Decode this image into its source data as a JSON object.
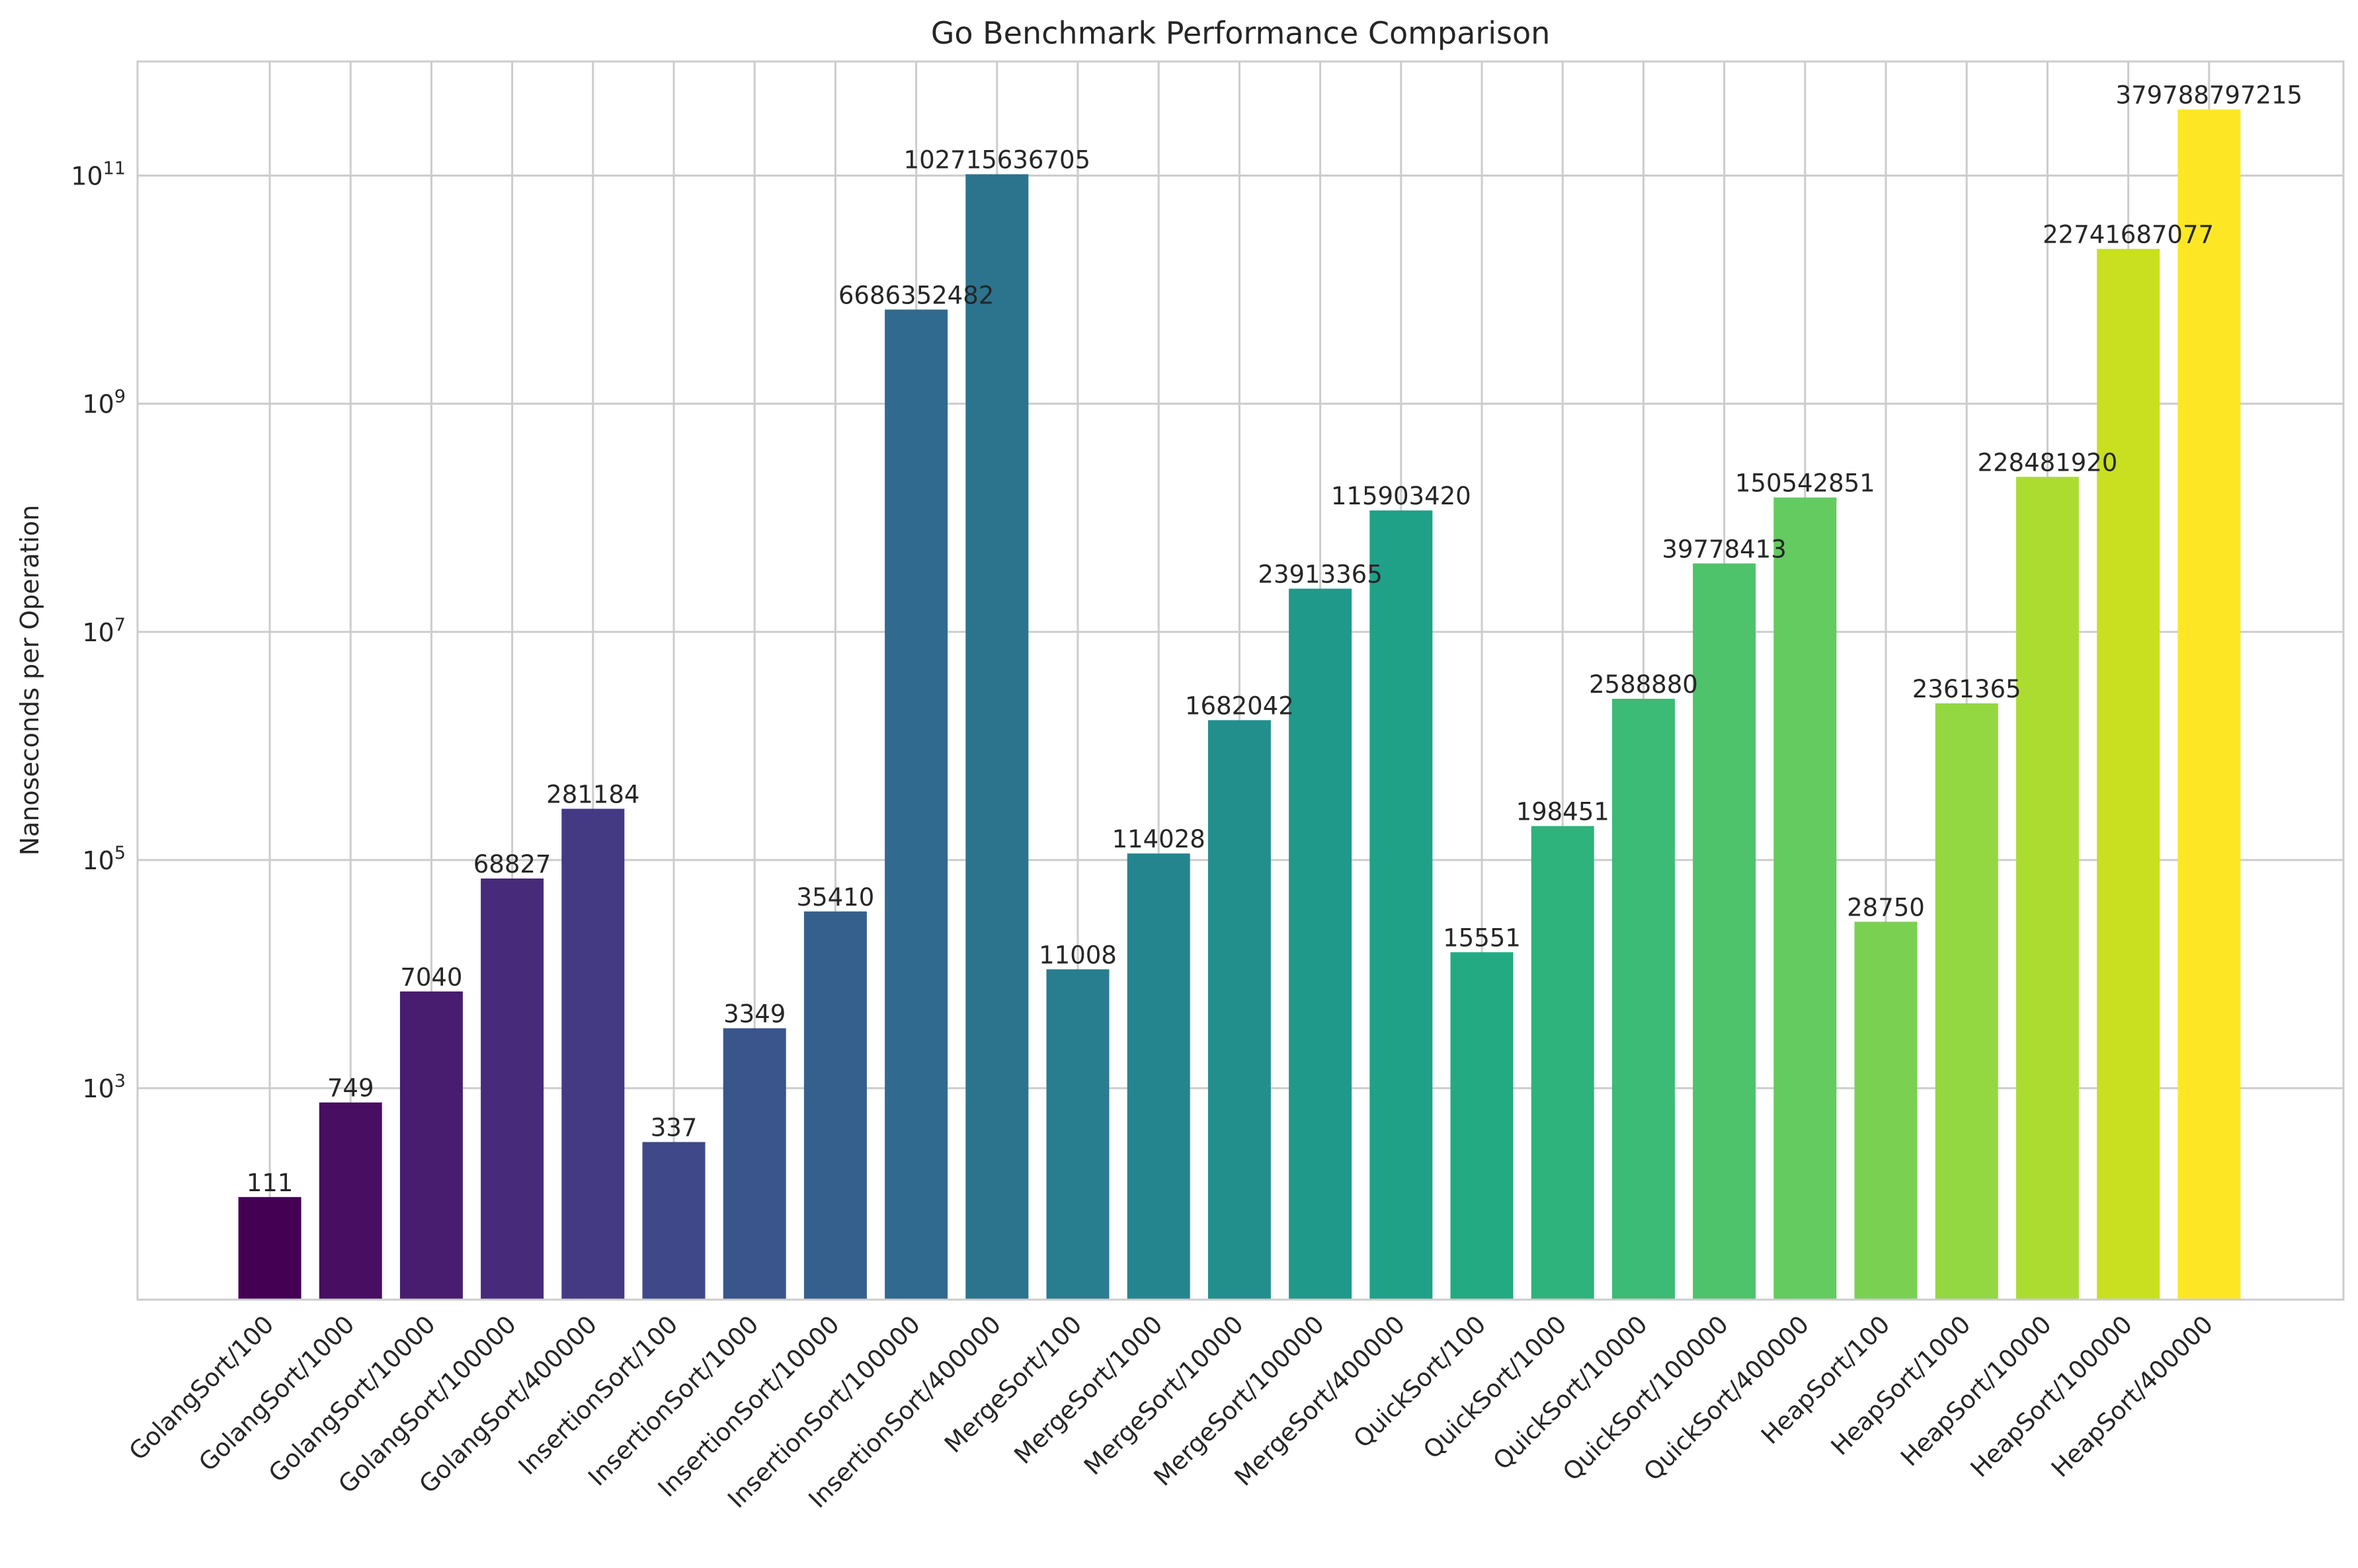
{
  "chart_data": {
    "type": "bar",
    "title": "Go Benchmark Performance Comparison",
    "xlabel": "",
    "ylabel": "Nanoseconds per Operation",
    "yscale": "log",
    "ylim": [
      14,
      1000000000000
    ],
    "yticks": [
      {
        "value": 1000,
        "base": "10",
        "exp": "3"
      },
      {
        "value": 100000,
        "base": "10",
        "exp": "5"
      },
      {
        "value": 10000000,
        "base": "10",
        "exp": "7"
      },
      {
        "value": 1000000000,
        "base": "10",
        "exp": "9"
      },
      {
        "value": 100000000000,
        "base": "10",
        "exp": "11"
      }
    ],
    "grid": true,
    "legend": "none",
    "colormap": "viridis",
    "categories": [
      "GolangSort/100",
      "GolangSort/1000",
      "GolangSort/10000",
      "GolangSort/100000",
      "GolangSort/400000",
      "InsertionSort/100",
      "InsertionSort/1000",
      "InsertionSort/10000",
      "InsertionSort/100000",
      "InsertionSort/400000",
      "MergeSort/100",
      "MergeSort/1000",
      "MergeSort/10000",
      "MergeSort/100000",
      "MergeSort/400000",
      "QuickSort/100",
      "QuickSort/1000",
      "QuickSort/10000",
      "QuickSort/100000",
      "QuickSort/400000",
      "HeapSort/100",
      "HeapSort/1000",
      "HeapSort/10000",
      "HeapSort/100000",
      "HeapSort/400000"
    ],
    "values": [
      111,
      749,
      7040,
      68827,
      281184,
      337,
      3349,
      35410,
      6686352482,
      102715636705,
      11008,
      114028,
      1682042,
      23913365,
      115903420,
      15551,
      198451,
      2588880,
      39778413,
      150542851,
      28750,
      2361365,
      228481920,
      22741687077,
      379788797215
    ],
    "value_labels": [
      "111",
      "749",
      "7040",
      "68827",
      "281184",
      "337",
      "3349",
      "35410",
      "6686352482",
      "102715636705",
      "11008",
      "114028",
      "1682042",
      "23913365",
      "115903420",
      "15551",
      "198451",
      "2588880",
      "39778413",
      "150542851",
      "28750",
      "2361365",
      "228481920",
      "22741687077",
      "379788797215"
    ],
    "colors": [
      "#440154",
      "#470e61",
      "#481c6e",
      "#472a7a",
      "#443983",
      "#3f4889",
      "#3a548c",
      "#35608d",
      "#306a8e",
      "#2c738e",
      "#287d8e",
      "#25858e",
      "#228f8d",
      "#1f998a",
      "#1fa188",
      "#24aa83",
      "#2eb37c",
      "#3bbb75",
      "#4ec36b",
      "#63cb5f",
      "#7ad151",
      "#93d741",
      "#addc30",
      "#c8e020",
      "#fde725"
    ]
  }
}
